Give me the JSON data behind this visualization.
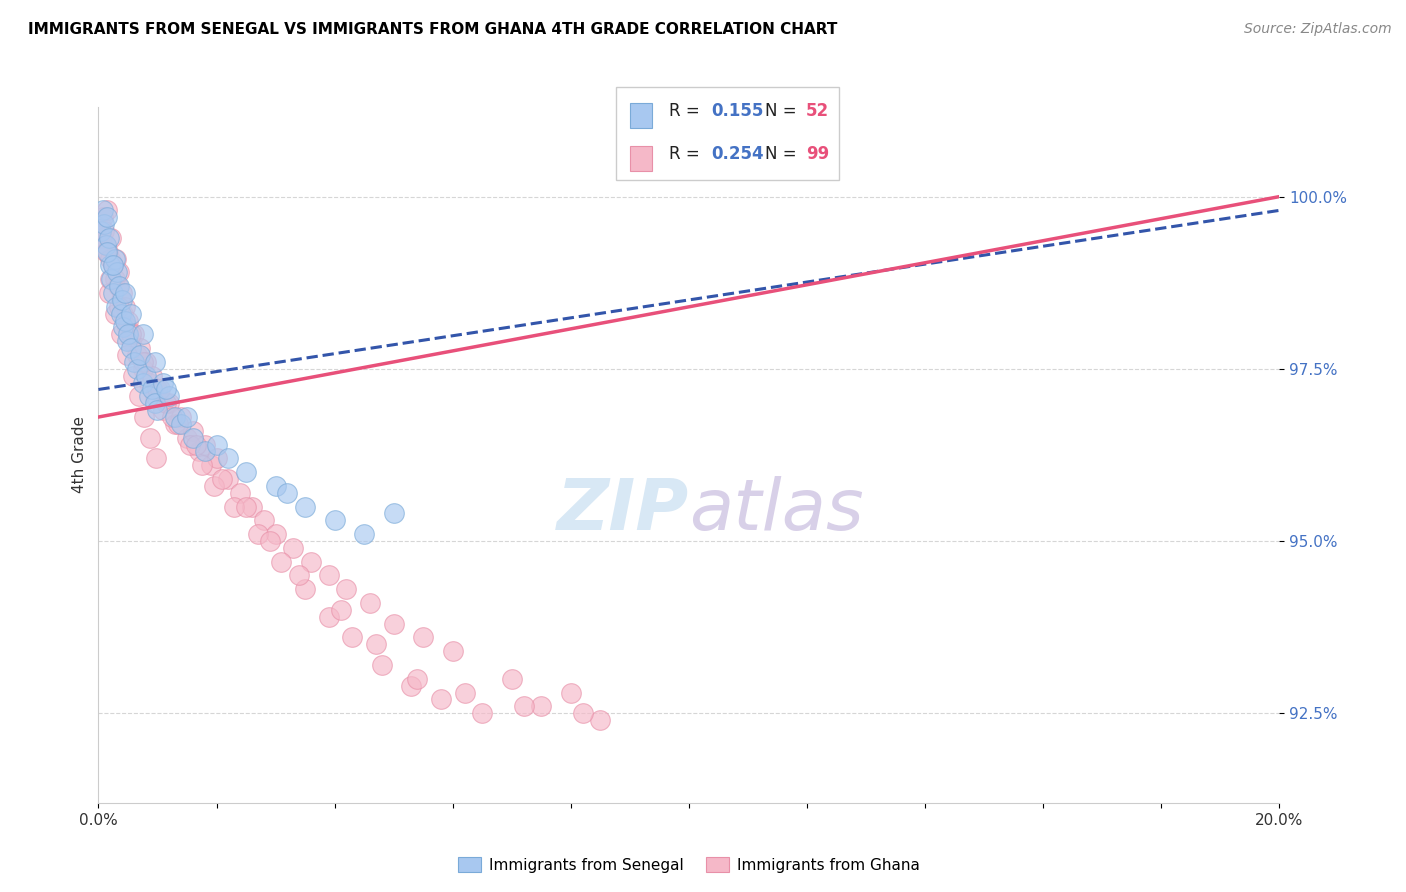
{
  "title": "IMMIGRANTS FROM SENEGAL VS IMMIGRANTS FROM GHANA 4TH GRADE CORRELATION CHART",
  "source": "Source: ZipAtlas.com",
  "ylabel": "4th Grade",
  "ytick_values": [
    92.5,
    95.0,
    97.5,
    100.0
  ],
  "xlim": [
    0.0,
    20.0
  ],
  "ylim": [
    91.2,
    101.3
  ],
  "legend_label_blue": "Immigrants from Senegal",
  "legend_label_pink": "Immigrants from Ghana",
  "blue_color": "#A8C8F0",
  "pink_color": "#F5B8C8",
  "blue_edge_color": "#7AAAD8",
  "pink_edge_color": "#E890A8",
  "blue_line_color": "#3355AA",
  "pink_line_color": "#E8507A",
  "r_value_color": "#4472C4",
  "n_value_color": "#E8507A",
  "grid_color": "#CCCCCC",
  "senegal_x": [
    0.05,
    0.08,
    0.1,
    0.12,
    0.15,
    0.18,
    0.2,
    0.22,
    0.25,
    0.28,
    0.3,
    0.32,
    0.35,
    0.38,
    0.4,
    0.42,
    0.45,
    0.48,
    0.5,
    0.55,
    0.6,
    0.65,
    0.7,
    0.75,
    0.8,
    0.85,
    0.9,
    0.95,
    1.0,
    1.1,
    1.2,
    1.3,
    1.4,
    1.6,
    1.8,
    2.0,
    2.5,
    3.0,
    3.5,
    4.0,
    4.5,
    5.0,
    0.15,
    0.25,
    0.45,
    0.55,
    0.75,
    0.95,
    1.15,
    1.5,
    2.2,
    3.2
  ],
  "senegal_y": [
    99.5,
    99.8,
    99.6,
    99.3,
    99.7,
    99.4,
    99.0,
    98.8,
    98.6,
    99.1,
    98.4,
    98.9,
    98.7,
    98.3,
    98.5,
    98.1,
    98.2,
    97.9,
    98.0,
    97.8,
    97.6,
    97.5,
    97.7,
    97.3,
    97.4,
    97.1,
    97.2,
    97.0,
    96.9,
    97.3,
    97.1,
    96.8,
    96.7,
    96.5,
    96.3,
    96.4,
    96.0,
    95.8,
    95.5,
    95.3,
    95.1,
    95.4,
    99.2,
    99.0,
    98.6,
    98.3,
    98.0,
    97.6,
    97.2,
    96.8,
    96.2,
    95.7
  ],
  "ghana_x": [
    0.03,
    0.06,
    0.08,
    0.1,
    0.12,
    0.15,
    0.17,
    0.2,
    0.22,
    0.25,
    0.28,
    0.3,
    0.33,
    0.35,
    0.38,
    0.4,
    0.42,
    0.45,
    0.48,
    0.5,
    0.55,
    0.6,
    0.65,
    0.7,
    0.75,
    0.8,
    0.85,
    0.9,
    0.95,
    1.0,
    1.1,
    1.2,
    1.3,
    1.4,
    1.5,
    1.6,
    1.7,
    1.8,
    1.9,
    2.0,
    2.2,
    2.4,
    2.6,
    2.8,
    3.0,
    3.3,
    3.6,
    3.9,
    4.2,
    4.6,
    5.0,
    5.5,
    6.0,
    7.0,
    8.0,
    0.12,
    0.18,
    0.28,
    0.38,
    0.48,
    0.58,
    0.68,
    0.78,
    0.88,
    0.98,
    1.15,
    1.35,
    1.55,
    1.75,
    1.95,
    2.3,
    2.7,
    3.1,
    3.5,
    3.9,
    4.3,
    4.8,
    5.3,
    5.8,
    6.5,
    7.5,
    8.5,
    0.2,
    0.35,
    0.55,
    0.75,
    1.05,
    1.25,
    1.65,
    2.1,
    2.5,
    2.9,
    3.4,
    4.1,
    4.7,
    5.4,
    6.2,
    7.2,
    8.2
  ],
  "ghana_y": [
    99.6,
    99.4,
    99.7,
    99.5,
    99.3,
    99.8,
    99.2,
    99.1,
    99.4,
    99.0,
    98.8,
    99.1,
    98.7,
    98.9,
    98.5,
    98.6,
    98.3,
    98.4,
    98.1,
    98.2,
    97.9,
    98.0,
    97.7,
    97.8,
    97.5,
    97.6,
    97.3,
    97.4,
    97.1,
    97.2,
    96.9,
    97.0,
    96.7,
    96.8,
    96.5,
    96.6,
    96.3,
    96.4,
    96.1,
    96.2,
    95.9,
    95.7,
    95.5,
    95.3,
    95.1,
    94.9,
    94.7,
    94.5,
    94.3,
    94.1,
    93.8,
    93.6,
    93.4,
    93.0,
    92.8,
    99.2,
    98.6,
    98.3,
    98.0,
    97.7,
    97.4,
    97.1,
    96.8,
    96.5,
    96.2,
    97.0,
    96.7,
    96.4,
    96.1,
    95.8,
    95.5,
    95.1,
    94.7,
    94.3,
    93.9,
    93.6,
    93.2,
    92.9,
    92.7,
    92.5,
    92.6,
    92.4,
    98.8,
    98.4,
    98.0,
    97.6,
    97.2,
    96.8,
    96.4,
    95.9,
    95.5,
    95.0,
    94.5,
    94.0,
    93.5,
    93.0,
    92.8,
    92.6,
    92.5
  ]
}
